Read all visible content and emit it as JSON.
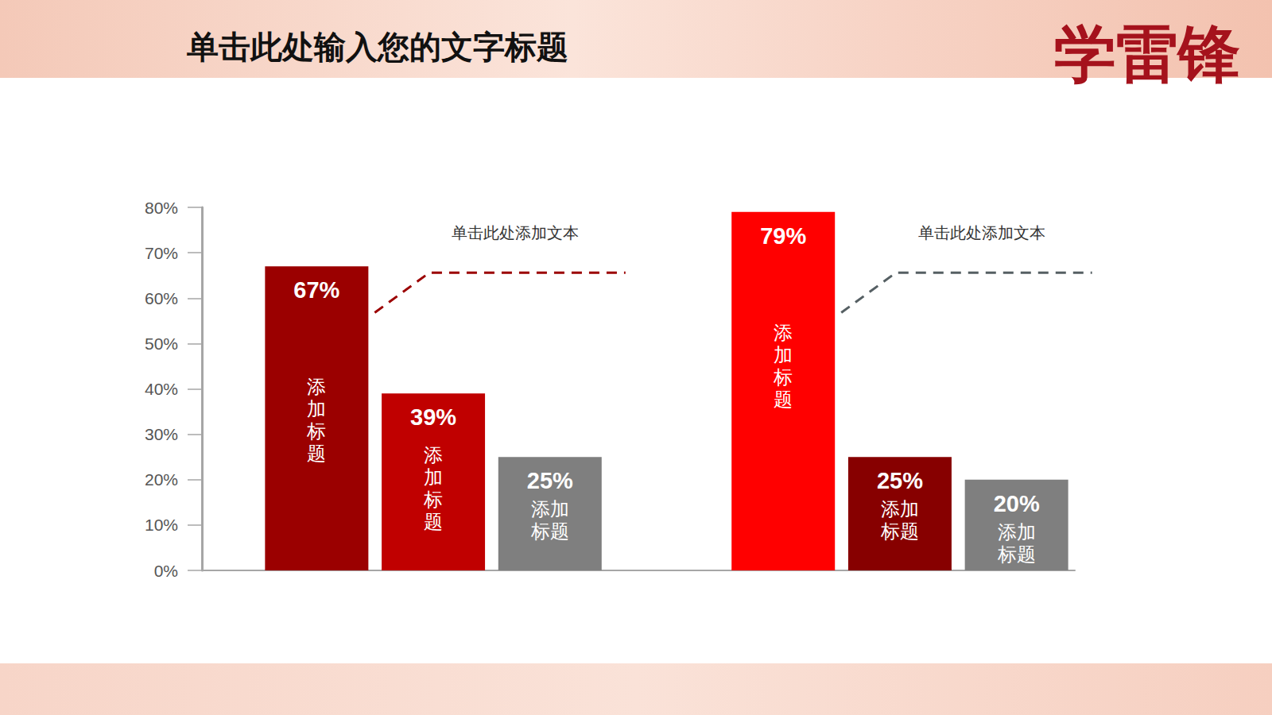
{
  "header": {
    "logo_text": "学雷锋"
  },
  "chart_data": {
    "type": "bar",
    "title": "单击此处输入您的文字标题",
    "categories": [
      "添加标题",
      "添加标题",
      "添加标题",
      null,
      "添加标题",
      "添加标题",
      "添加标题"
    ],
    "values": [
      67,
      39,
      25,
      null,
      79,
      25,
      20
    ],
    "value_labels": [
      "67%",
      "39%",
      "25%",
      null,
      "79%",
      "25%",
      "20%"
    ],
    "colors": [
      "#9b0000",
      "#c00000",
      "#7f7f7f",
      null,
      "#ff0000",
      "#870000",
      "#7f7f7f"
    ],
    "ylim": [
      0,
      80
    ],
    "yticks": [
      {
        "value": 0,
        "label": "0%"
      },
      {
        "value": 10,
        "label": "10%"
      },
      {
        "value": 20,
        "label": "20%"
      },
      {
        "value": 30,
        "label": "30%"
      },
      {
        "value": 40,
        "label": "40%"
      },
      {
        "value": 50,
        "label": "50%"
      },
      {
        "value": 60,
        "label": "60%"
      },
      {
        "value": 70,
        "label": "70%"
      },
      {
        "value": 80,
        "label": "80%"
      }
    ],
    "grid": false,
    "data_labels": true,
    "tick_labels": "y",
    "annotations": [
      {
        "text": "单击此处添加文本",
        "color": "#9b0000"
      },
      {
        "text": "单击此处添加文本",
        "color": "#555f63"
      }
    ]
  }
}
